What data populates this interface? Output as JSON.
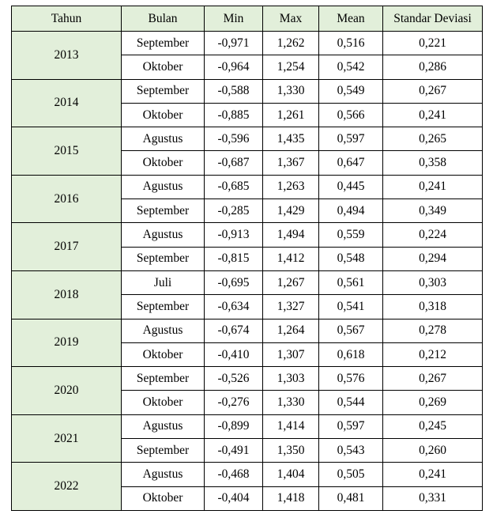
{
  "colors": {
    "header_bg": "#e2efda",
    "border": "#000000"
  },
  "headers": [
    "Tahun",
    "Bulan",
    "Min",
    "Max",
    "Mean",
    "Standar Deviasi"
  ],
  "rows": [
    {
      "year": "2013",
      "entries": [
        {
          "month": "September",
          "min": "-0,971",
          "max": "1,262",
          "mean": "0,516",
          "sd": "0,221"
        },
        {
          "month": "Oktober",
          "min": "-0,964",
          "max": "1,254",
          "mean": "0,542",
          "sd": "0,286"
        }
      ]
    },
    {
      "year": "2014",
      "entries": [
        {
          "month": "September",
          "min": "-0,588",
          "max": "1,330",
          "mean": "0,549",
          "sd": "0,267"
        },
        {
          "month": "Oktober",
          "min": "-0,885",
          "max": "1,261",
          "mean": "0,566",
          "sd": "0,241"
        }
      ]
    },
    {
      "year": "2015",
      "entries": [
        {
          "month": "Agustus",
          "min": "-0,596",
          "max": "1,435",
          "mean": "0,597",
          "sd": "0,265"
        },
        {
          "month": "Oktober",
          "min": "-0,687",
          "max": "1,367",
          "mean": "0,647",
          "sd": "0,358"
        }
      ]
    },
    {
      "year": "2016",
      "entries": [
        {
          "month": "Agustus",
          "min": "-0,685",
          "max": "1,263",
          "mean": "0,445",
          "sd": "0,241"
        },
        {
          "month": "September",
          "min": "-0,285",
          "max": "1,429",
          "mean": "0,494",
          "sd": "0,349"
        }
      ]
    },
    {
      "year": "2017",
      "entries": [
        {
          "month": "Agustus",
          "min": "-0,913",
          "max": "1,494",
          "mean": "0,559",
          "sd": "0,224"
        },
        {
          "month": "September",
          "min": "-0,815",
          "max": "1,412",
          "mean": "0,548",
          "sd": "0,294"
        }
      ]
    },
    {
      "year": "2018",
      "entries": [
        {
          "month": "Juli",
          "min": "-0,695",
          "max": "1,267",
          "mean": "0,561",
          "sd": "0,303"
        },
        {
          "month": "September",
          "min": "-0,634",
          "max": "1,327",
          "mean": "0,541",
          "sd": "0,318"
        }
      ]
    },
    {
      "year": "2019",
      "entries": [
        {
          "month": "Agustus",
          "min": "-0,674",
          "max": "1,264",
          "mean": "0,567",
          "sd": "0,278"
        },
        {
          "month": "Oktober",
          "min": "-0,410",
          "max": "1,307",
          "mean": "0,618",
          "sd": "0,212"
        }
      ]
    },
    {
      "year": "2020",
      "entries": [
        {
          "month": "September",
          "min": "-0,526",
          "max": "1,303",
          "mean": "0,576",
          "sd": "0,267"
        },
        {
          "month": "Oktober",
          "min": "-0,276",
          "max": "1,330",
          "mean": "0,544",
          "sd": "0,269"
        }
      ]
    },
    {
      "year": "2021",
      "entries": [
        {
          "month": "Agustus",
          "min": "-0,899",
          "max": "1,414",
          "mean": "0,597",
          "sd": "0,245"
        },
        {
          "month": "September",
          "min": "-0,491",
          "max": "1,350",
          "mean": "0,543",
          "sd": "0,260"
        }
      ]
    },
    {
      "year": "2022",
      "entries": [
        {
          "month": "Agustus",
          "min": "-0,468",
          "max": "1,404",
          "mean": "0,505",
          "sd": "0,241"
        },
        {
          "month": "Oktober",
          "min": "-0,404",
          "max": "1,418",
          "mean": "0,481",
          "sd": "0,331"
        }
      ]
    }
  ]
}
